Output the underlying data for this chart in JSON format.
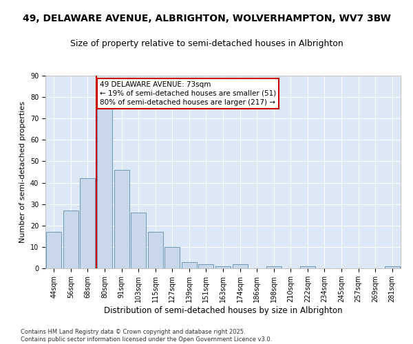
{
  "title": "49, DELAWARE AVENUE, ALBRIGHTON, WOLVERHAMPTON, WV7 3BW",
  "subtitle": "Size of property relative to semi-detached houses in Albrighton",
  "xlabel": "Distribution of semi-detached houses by size in Albrighton",
  "ylabel": "Number of semi-detached properties",
  "categories": [
    "44sqm",
    "56sqm",
    "68sqm",
    "80sqm",
    "91sqm",
    "103sqm",
    "115sqm",
    "127sqm",
    "139sqm",
    "151sqm",
    "163sqm",
    "174sqm",
    "186sqm",
    "198sqm",
    "210sqm",
    "222sqm",
    "234sqm",
    "245sqm",
    "257sqm",
    "269sqm",
    "281sqm"
  ],
  "values": [
    17,
    27,
    42,
    76,
    46,
    26,
    17,
    10,
    3,
    2,
    1,
    2,
    0,
    1,
    0,
    1,
    0,
    0,
    0,
    0,
    1
  ],
  "bar_color": "#c8d8ea",
  "bar_edge_color": "#7098b8",
  "vline_color": "#cc0000",
  "annotation_title": "49 DELAWARE AVENUE: 73sqm",
  "annotation_line1": "← 19% of semi-detached houses are smaller (51)",
  "annotation_line2": "80% of semi-detached houses are larger (217) →",
  "annotation_box_color": "#cc0000",
  "ylim": [
    0,
    90
  ],
  "yticks": [
    0,
    10,
    20,
    30,
    40,
    50,
    60,
    70,
    80,
    90
  ],
  "background_color": "#dce8f5",
  "footer": "Contains HM Land Registry data © Crown copyright and database right 2025.\nContains public sector information licensed under the Open Government Licence v3.0.",
  "title_fontsize": 10,
  "subtitle_fontsize": 9,
  "xlabel_fontsize": 8.5,
  "ylabel_fontsize": 8,
  "tick_fontsize": 7,
  "footer_fontsize": 6,
  "annotation_fontsize": 7.5
}
